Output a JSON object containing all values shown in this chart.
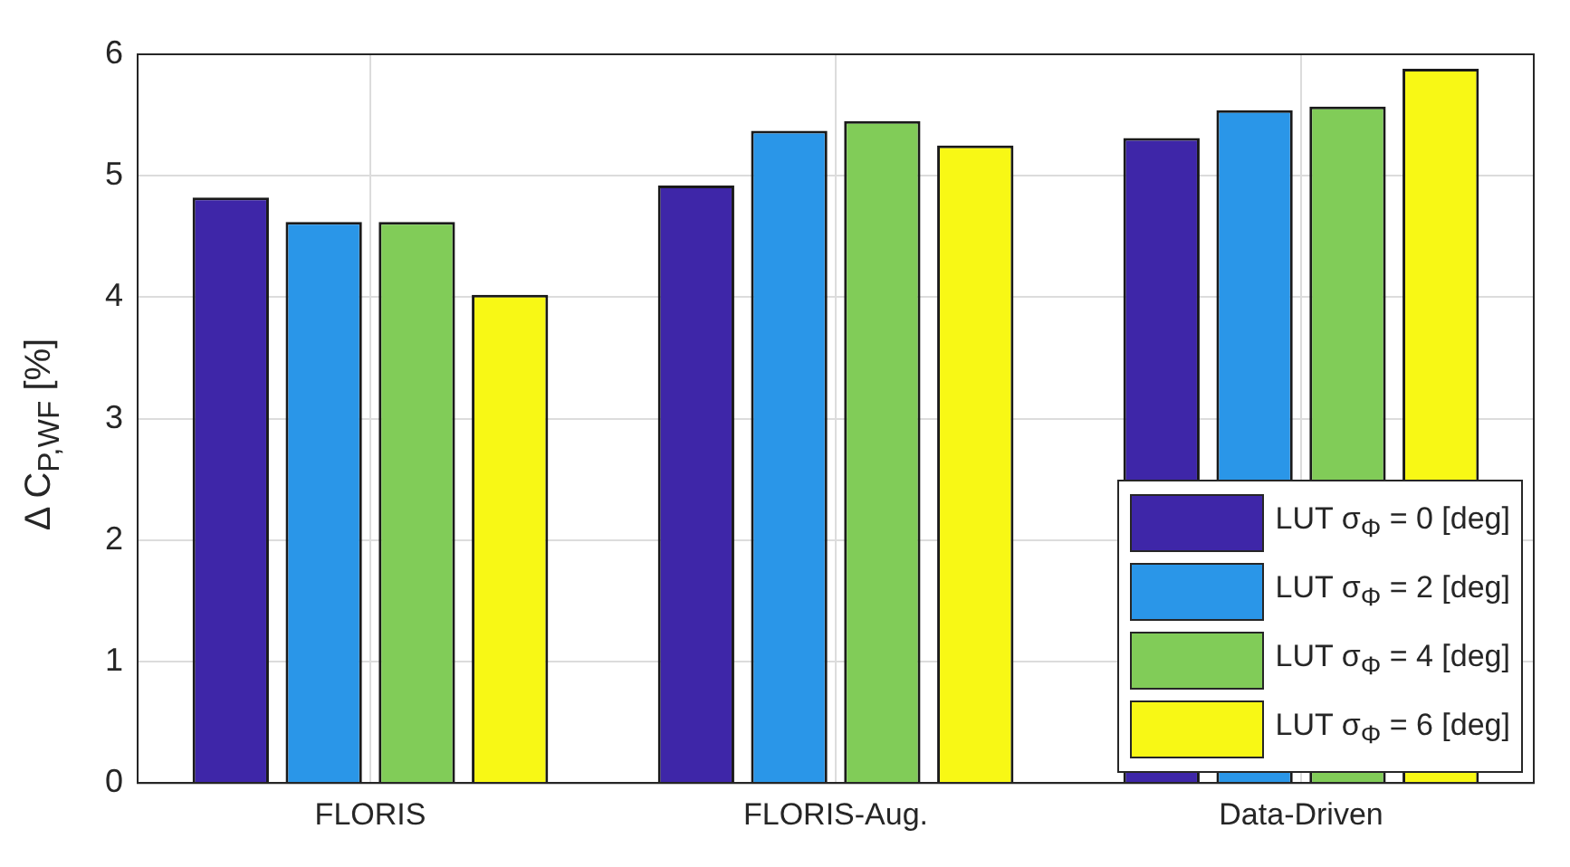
{
  "chart_data": {
    "type": "bar",
    "ylabel": "Δ C$_{P,WF}$ [%]",
    "categories": [
      "FLORIS",
      "FLORIS-Aug.",
      "Data-Driven"
    ],
    "series": [
      {
        "name": "LUT σ$_{Φ}$ = 0 [deg]",
        "color": "#3e26a8",
        "values": [
          4.82,
          4.92,
          5.31
        ]
      },
      {
        "name": "LUT σ$_{Φ}$ = 2 [deg]",
        "color": "#2a96e8",
        "values": [
          4.62,
          5.37,
          5.54
        ]
      },
      {
        "name": "LUT σ$_{Φ}$ = 4 [deg]",
        "color": "#81cc58",
        "values": [
          4.62,
          5.45,
          5.57
        ]
      },
      {
        "name": "LUT σ$_{Φ}$ = 6 [deg]",
        "color": "#f8f815",
        "values": [
          4.02,
          5.25,
          5.88
        ]
      }
    ],
    "ylim": [
      0,
      6
    ],
    "yticks": [
      0,
      1,
      2,
      3,
      4,
      5,
      6
    ],
    "grid": true,
    "legend": "bottom right"
  }
}
